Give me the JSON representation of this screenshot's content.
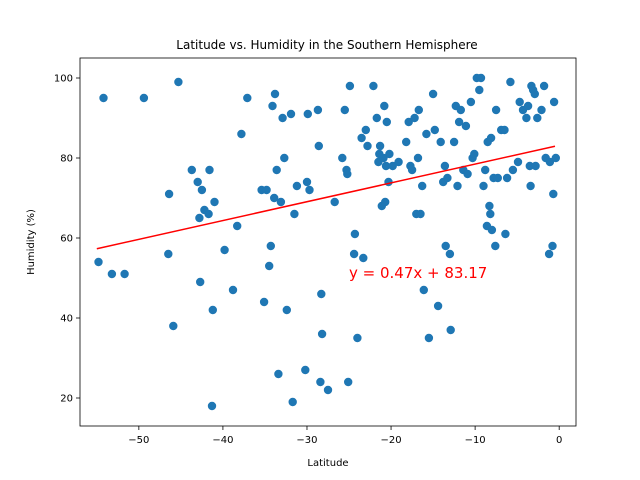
{
  "chart_data": {
    "type": "scatter",
    "title": "Latitude vs. Humidity in the Southern Hemisphere",
    "xlabel": "Latitude",
    "ylabel": "Humidity (%)",
    "xlim": [
      -57,
      2
    ],
    "ylim": [
      13,
      105
    ],
    "xticks": [
      -50,
      -40,
      -30,
      -20,
      -10,
      0
    ],
    "yticks": [
      20,
      40,
      60,
      80,
      100
    ],
    "grid": false,
    "point_color": "#1f77b4",
    "line_color": "#ff0000",
    "regression": {
      "slope": 0.47,
      "intercept": 83.17,
      "x_range": [
        -55,
        -0.5
      ],
      "equation": "y = 0.47x + 83.17",
      "annotation_at": [
        -25,
        50
      ]
    },
    "points": [
      [
        -54.8,
        54
      ],
      [
        -54.2,
        95
      ],
      [
        -53.2,
        51
      ],
      [
        -51.7,
        51
      ],
      [
        -49.4,
        95
      ],
      [
        -46.5,
        56
      ],
      [
        -46.4,
        71
      ],
      [
        -45.9,
        38
      ],
      [
        -45.3,
        99
      ],
      [
        -43.7,
        77
      ],
      [
        -43.0,
        74
      ],
      [
        -42.8,
        65
      ],
      [
        -42.7,
        49
      ],
      [
        -42.5,
        72
      ],
      [
        -42.2,
        67
      ],
      [
        -41.7,
        66
      ],
      [
        -41.6,
        77
      ],
      [
        -41.3,
        18
      ],
      [
        -41.2,
        42
      ],
      [
        -41.0,
        69
      ],
      [
        -39.8,
        57
      ],
      [
        -38.8,
        47
      ],
      [
        -38.3,
        63
      ],
      [
        -37.8,
        86
      ],
      [
        -37.1,
        95
      ],
      [
        -35.4,
        72
      ],
      [
        -35.1,
        44
      ],
      [
        -34.8,
        72
      ],
      [
        -34.5,
        53
      ],
      [
        -34.3,
        58
      ],
      [
        -34.1,
        93
      ],
      [
        -33.9,
        70
      ],
      [
        -33.8,
        96
      ],
      [
        -33.6,
        77
      ],
      [
        -33.4,
        26
      ],
      [
        -33.1,
        69
      ],
      [
        -32.9,
        90
      ],
      [
        -32.7,
        80
      ],
      [
        -32.4,
        42
      ],
      [
        -31.9,
        91
      ],
      [
        -31.7,
        19
      ],
      [
        -31.5,
        66
      ],
      [
        -31.2,
        73
      ],
      [
        -30.2,
        27
      ],
      [
        -30.0,
        74
      ],
      [
        -29.9,
        91
      ],
      [
        -29.7,
        72
      ],
      [
        -28.7,
        92
      ],
      [
        -28.6,
        83
      ],
      [
        -28.4,
        24
      ],
      [
        -28.3,
        46
      ],
      [
        -28.2,
        36
      ],
      [
        -27.5,
        22
      ],
      [
        -26.7,
        69
      ],
      [
        -25.8,
        80
      ],
      [
        -25.5,
        92
      ],
      [
        -25.3,
        77
      ],
      [
        -25.2,
        76
      ],
      [
        -25.1,
        24
      ],
      [
        -24.9,
        98
      ],
      [
        -24.4,
        56
      ],
      [
        -24.3,
        61
      ],
      [
        -24.0,
        35
      ],
      [
        -23.5,
        85
      ],
      [
        -23.3,
        55
      ],
      [
        -23.0,
        87
      ],
      [
        -22.8,
        83
      ],
      [
        -22.1,
        98
      ],
      [
        -21.7,
        90
      ],
      [
        -21.5,
        79
      ],
      [
        -21.4,
        81
      ],
      [
        -21.3,
        83
      ],
      [
        -21.1,
        68
      ],
      [
        -20.9,
        80
      ],
      [
        -20.8,
        93
      ],
      [
        -20.7,
        69
      ],
      [
        -20.6,
        78
      ],
      [
        -20.5,
        89
      ],
      [
        -20.3,
        74
      ],
      [
        -20.2,
        81
      ],
      [
        -19.8,
        78
      ],
      [
        -19.1,
        79
      ],
      [
        -18.2,
        84
      ],
      [
        -17.9,
        89
      ],
      [
        -17.7,
        78
      ],
      [
        -17.5,
        77
      ],
      [
        -17.2,
        90
      ],
      [
        -17.0,
        66
      ],
      [
        -16.8,
        80
      ],
      [
        -16.7,
        92
      ],
      [
        -16.5,
        66
      ],
      [
        -16.3,
        73
      ],
      [
        -16.1,
        47
      ],
      [
        -15.8,
        86
      ],
      [
        -15.5,
        35
      ],
      [
        -15.0,
        96
      ],
      [
        -14.8,
        87
      ],
      [
        -14.4,
        43
      ],
      [
        -14.1,
        84
      ],
      [
        -13.8,
        74
      ],
      [
        -13.6,
        78
      ],
      [
        -13.5,
        58
      ],
      [
        -13.3,
        75
      ],
      [
        -13.0,
        56
      ],
      [
        -12.9,
        37
      ],
      [
        -12.5,
        84
      ],
      [
        -12.3,
        93
      ],
      [
        -12.1,
        73
      ],
      [
        -11.9,
        89
      ],
      [
        -11.7,
        92
      ],
      [
        -11.4,
        77
      ],
      [
        -11.1,
        88
      ],
      [
        -10.9,
        76
      ],
      [
        -10.5,
        94
      ],
      [
        -10.3,
        80
      ],
      [
        -10.1,
        81
      ],
      [
        -9.8,
        100
      ],
      [
        -9.5,
        97
      ],
      [
        -9.3,
        100
      ],
      [
        -9.0,
        73
      ],
      [
        -8.8,
        77
      ],
      [
        -8.6,
        63
      ],
      [
        -8.5,
        84
      ],
      [
        -8.3,
        68
      ],
      [
        -8.2,
        66
      ],
      [
        -8.1,
        85
      ],
      [
        -8.0,
        62
      ],
      [
        -7.8,
        75
      ],
      [
        -7.6,
        58
      ],
      [
        -7.5,
        92
      ],
      [
        -7.3,
        75
      ],
      [
        -6.9,
        87
      ],
      [
        -6.5,
        87
      ],
      [
        -6.4,
        61
      ],
      [
        -6.2,
        75
      ],
      [
        -5.8,
        99
      ],
      [
        -5.5,
        77
      ],
      [
        -4.9,
        79
      ],
      [
        -4.7,
        94
      ],
      [
        -4.3,
        92
      ],
      [
        -3.9,
        90
      ],
      [
        -3.7,
        93
      ],
      [
        -3.5,
        78
      ],
      [
        -3.4,
        73
      ],
      [
        -3.3,
        98
      ],
      [
        -3.1,
        97
      ],
      [
        -2.9,
        96
      ],
      [
        -2.8,
        78
      ],
      [
        -2.6,
        90
      ],
      [
        -2.1,
        92
      ],
      [
        -1.8,
        98
      ],
      [
        -1.6,
        80
      ],
      [
        -1.2,
        56
      ],
      [
        -1.1,
        79
      ],
      [
        -0.8,
        58
      ],
      [
        -0.7,
        71
      ],
      [
        -0.6,
        94
      ],
      [
        -0.4,
        80
      ]
    ]
  }
}
